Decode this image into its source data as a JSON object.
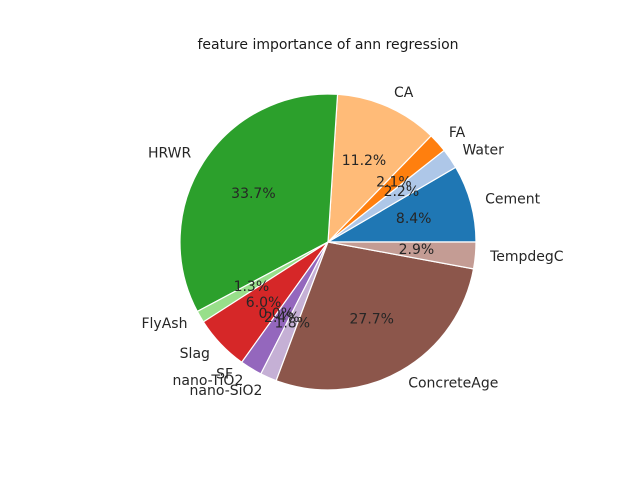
{
  "chart_data": {
    "type": "pie",
    "title": "feature importance of ann regression",
    "slices": [
      {
        "label": "Cement",
        "value": 8.4,
        "pct_text": "8.4%",
        "color": "#1f77b4"
      },
      {
        "label": "Water",
        "value": 2.2,
        "pct_text": "2.2%",
        "color": "#aec7e8"
      },
      {
        "label": "FA",
        "value": 2.1,
        "pct_text": "2.1%",
        "color": "#ff7f0e"
      },
      {
        "label": "CA",
        "value": 11.2,
        "pct_text": "11.2%",
        "color": "#ffbb78"
      },
      {
        "label": "HRWR",
        "value": 33.7,
        "pct_text": "33.7%",
        "color": "#2ca02c"
      },
      {
        "label": "FlyAsh",
        "value": 1.3,
        "pct_text": "1.3%",
        "color": "#98df8a"
      },
      {
        "label": "Slag",
        "value": 6.0,
        "pct_text": "6.0%",
        "color": "#d62728"
      },
      {
        "label": "SF",
        "value": 0.0,
        "pct_text": "0.0%",
        "color": "#ff9896"
      },
      {
        "label": "nano-TiO2",
        "value": 2.4,
        "pct_text": "2.4%",
        "color": "#9467bd"
      },
      {
        "label": "nano-SiO2",
        "value": 1.8,
        "pct_text": "1.8%",
        "color": "#c5b0d5"
      },
      {
        "label": "ConcreteAge",
        "value": 27.7,
        "pct_text": "27.7%",
        "color": "#8c564b"
      },
      {
        "label": "TempdegC",
        "value": 2.9,
        "pct_text": "2.9%",
        "color": "#c49c94"
      }
    ],
    "start_angle": 0,
    "direction": "counterclockwise"
  }
}
